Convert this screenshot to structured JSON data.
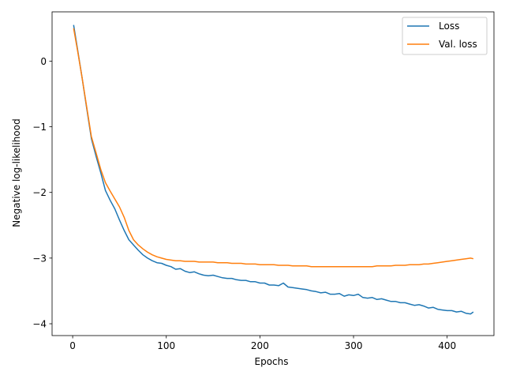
{
  "chart_data": {
    "type": "line",
    "title": "",
    "xlabel": "Epochs",
    "ylabel": "Negative log-likelihood",
    "xlim": [
      -22,
      450
    ],
    "ylim": [
      -4.18,
      0.75
    ],
    "x_ticks": [
      0,
      100,
      200,
      300,
      400
    ],
    "y_ticks": [
      0,
      -1,
      -2,
      -3,
      -4
    ],
    "x_tick_labels": [
      "0",
      "100",
      "200",
      "300",
      "400"
    ],
    "y_tick_labels": [
      "0",
      "−1",
      "−2",
      "−3",
      "−4"
    ],
    "grid": false,
    "legend_position": "top-right",
    "series": [
      {
        "name": "Loss",
        "color": "#1f77b4",
        "x": [
          1,
          5,
          10,
          15,
          20,
          25,
          30,
          35,
          40,
          45,
          50,
          55,
          60,
          65,
          70,
          75,
          80,
          85,
          90,
          95,
          100,
          105,
          110,
          115,
          120,
          125,
          130,
          135,
          140,
          145,
          150,
          155,
          160,
          165,
          170,
          175,
          180,
          185,
          190,
          195,
          200,
          205,
          210,
          215,
          220,
          225,
          230,
          235,
          240,
          245,
          250,
          255,
          260,
          265,
          270,
          275,
          280,
          285,
          290,
          295,
          300,
          305,
          310,
          315,
          320,
          325,
          330,
          335,
          340,
          345,
          350,
          355,
          360,
          365,
          370,
          375,
          380,
          385,
          390,
          395,
          400,
          405,
          410,
          415,
          420,
          425,
          428
        ],
        "y": [
          0.55,
          0.2,
          -0.25,
          -0.72,
          -1.18,
          -1.45,
          -1.7,
          -1.97,
          -2.12,
          -2.25,
          -2.42,
          -2.58,
          -2.72,
          -2.8,
          -2.88,
          -2.95,
          -3.0,
          -3.04,
          -3.07,
          -3.08,
          -3.11,
          -3.13,
          -3.17,
          -3.16,
          -3.2,
          -3.22,
          -3.21,
          -3.24,
          -3.26,
          -3.27,
          -3.26,
          -3.28,
          -3.3,
          -3.31,
          -3.31,
          -3.33,
          -3.34,
          -3.34,
          -3.36,
          -3.36,
          -3.38,
          -3.38,
          -3.41,
          -3.41,
          -3.42,
          -3.38,
          -3.44,
          -3.45,
          -3.46,
          -3.47,
          -3.48,
          -3.5,
          -3.51,
          -3.53,
          -3.52,
          -3.55,
          -3.55,
          -3.54,
          -3.58,
          -3.56,
          -3.57,
          -3.55,
          -3.6,
          -3.61,
          -3.6,
          -3.63,
          -3.62,
          -3.64,
          -3.66,
          -3.66,
          -3.68,
          -3.68,
          -3.7,
          -3.72,
          -3.71,
          -3.73,
          -3.76,
          -3.75,
          -3.78,
          -3.79,
          -3.8,
          -3.8,
          -3.82,
          -3.81,
          -3.84,
          -3.85,
          -3.82
        ]
      },
      {
        "name": "Val. loss",
        "color": "#ff7f0e",
        "x": [
          1,
          5,
          10,
          15,
          20,
          25,
          30,
          35,
          40,
          45,
          50,
          55,
          60,
          65,
          70,
          75,
          80,
          85,
          90,
          95,
          100,
          105,
          110,
          115,
          120,
          125,
          130,
          135,
          140,
          145,
          150,
          155,
          160,
          165,
          170,
          175,
          180,
          185,
          190,
          195,
          200,
          205,
          210,
          215,
          220,
          225,
          230,
          235,
          240,
          245,
          250,
          255,
          260,
          265,
          270,
          275,
          280,
          285,
          290,
          295,
          300,
          305,
          310,
          315,
          320,
          325,
          330,
          335,
          340,
          345,
          350,
          355,
          360,
          365,
          370,
          375,
          380,
          385,
          390,
          395,
          400,
          405,
          410,
          415,
          420,
          425,
          428
        ],
        "y": [
          0.5,
          0.18,
          -0.25,
          -0.7,
          -1.15,
          -1.4,
          -1.65,
          -1.85,
          -1.98,
          -2.1,
          -2.22,
          -2.38,
          -2.58,
          -2.72,
          -2.8,
          -2.86,
          -2.91,
          -2.95,
          -2.98,
          -3.0,
          -3.02,
          -3.03,
          -3.04,
          -3.04,
          -3.05,
          -3.05,
          -3.05,
          -3.06,
          -3.06,
          -3.06,
          -3.06,
          -3.07,
          -3.07,
          -3.07,
          -3.08,
          -3.08,
          -3.08,
          -3.09,
          -3.09,
          -3.09,
          -3.1,
          -3.1,
          -3.1,
          -3.1,
          -3.11,
          -3.11,
          -3.11,
          -3.12,
          -3.12,
          -3.12,
          -3.12,
          -3.13,
          -3.13,
          -3.13,
          -3.13,
          -3.13,
          -3.13,
          -3.13,
          -3.13,
          -3.13,
          -3.13,
          -3.13,
          -3.13,
          -3.13,
          -3.13,
          -3.12,
          -3.12,
          -3.12,
          -3.12,
          -3.11,
          -3.11,
          -3.11,
          -3.1,
          -3.1,
          -3.1,
          -3.09,
          -3.09,
          -3.08,
          -3.07,
          -3.06,
          -3.05,
          -3.04,
          -3.03,
          -3.02,
          -3.01,
          -3.0,
          -3.01
        ]
      }
    ]
  }
}
